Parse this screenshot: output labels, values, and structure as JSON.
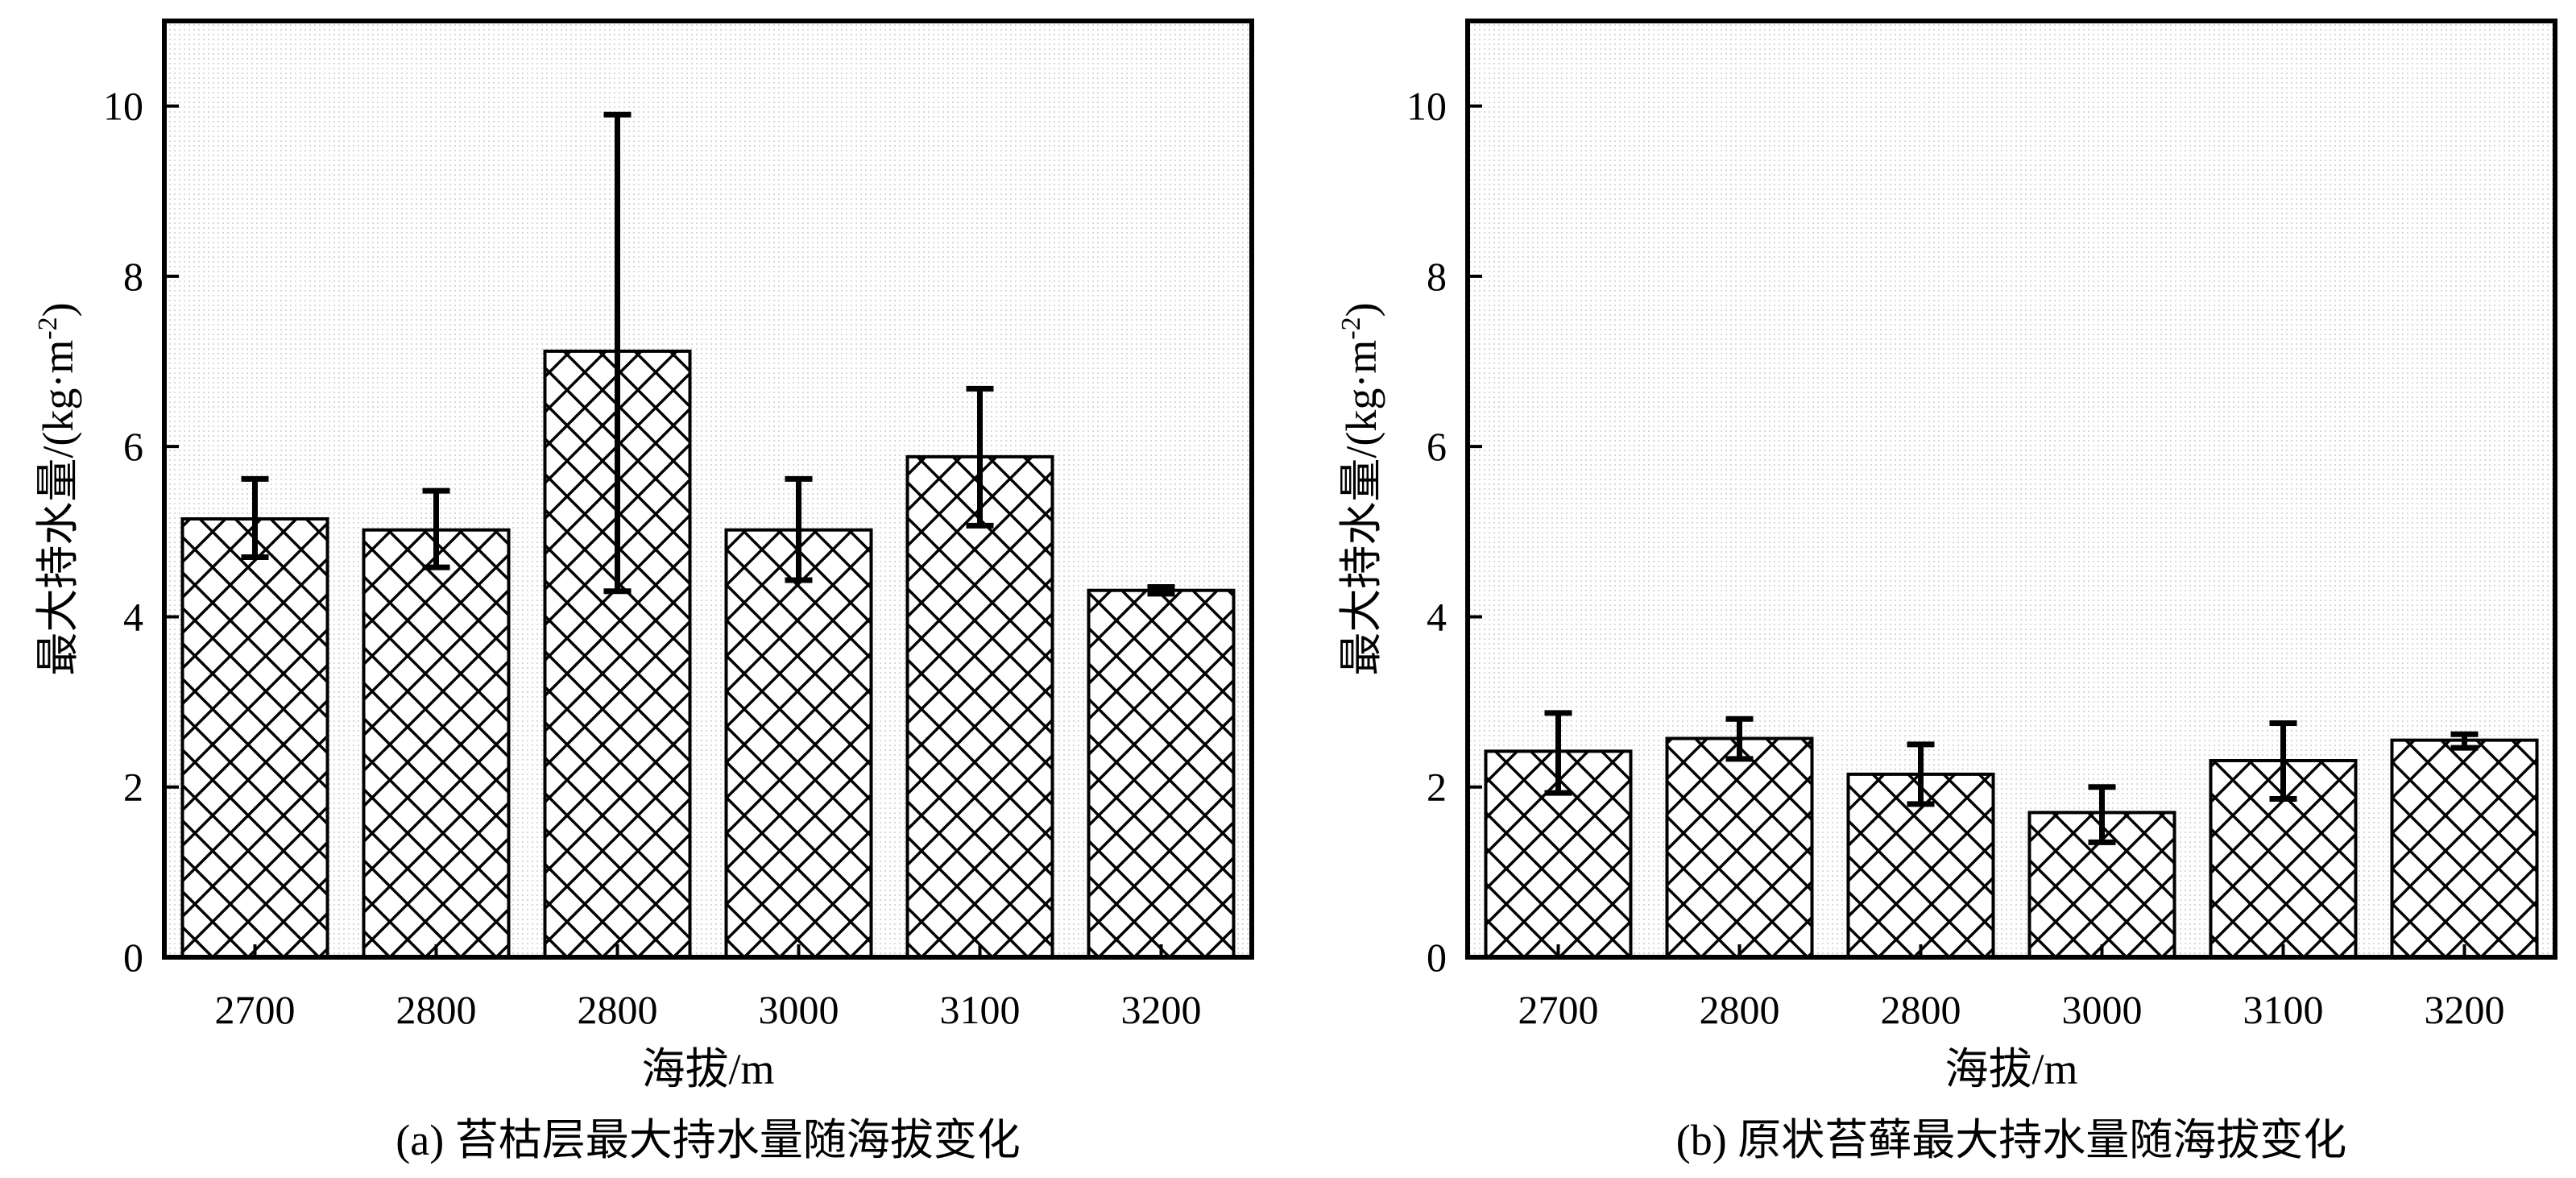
{
  "chart_data": [
    {
      "type": "bar",
      "caption": "(a) 苔枯层最大持水量随海拔变化",
      "xlabel": "海拔/m",
      "ylabel": "最大持水量/(kg·m",
      "ylabel_sup": "-2",
      "ylabel_close": ")",
      "categories": [
        "2700",
        "2800",
        "2800",
        "3000",
        "3100",
        "3200"
      ],
      "values": [
        5.15,
        5.02,
        7.12,
        5.02,
        5.88,
        4.31
      ],
      "err_low": [
        4.7,
        4.58,
        4.3,
        4.43,
        5.07,
        4.27
      ],
      "err_high": [
        5.62,
        5.48,
        9.9,
        5.62,
        6.68,
        4.35
      ],
      "ylim": [
        0,
        11
      ],
      "yticks": [
        "0",
        "2",
        "4",
        "6",
        "8",
        "10"
      ],
      "pattern": "cross-hatch"
    },
    {
      "type": "bar",
      "caption": "(b) 原状苔藓最大持水量随海拔变化",
      "xlabel": "海拔/m",
      "ylabel": "最大持水量/(kg·m",
      "ylabel_sup": "-2",
      "ylabel_close": ")",
      "categories": [
        "2700",
        "2800",
        "2800",
        "3000",
        "3100",
        "3200"
      ],
      "values": [
        2.42,
        2.57,
        2.15,
        1.7,
        2.31,
        2.55
      ],
      "err_low": [
        1.93,
        2.33,
        1.8,
        1.35,
        1.86,
        2.46
      ],
      "err_high": [
        2.87,
        2.8,
        2.5,
        2.0,
        2.75,
        2.62
      ],
      "ylim": [
        0,
        11
      ],
      "yticks": [
        "0",
        "2",
        "4",
        "6",
        "8",
        "10"
      ],
      "pattern": "cross-hatch"
    }
  ]
}
